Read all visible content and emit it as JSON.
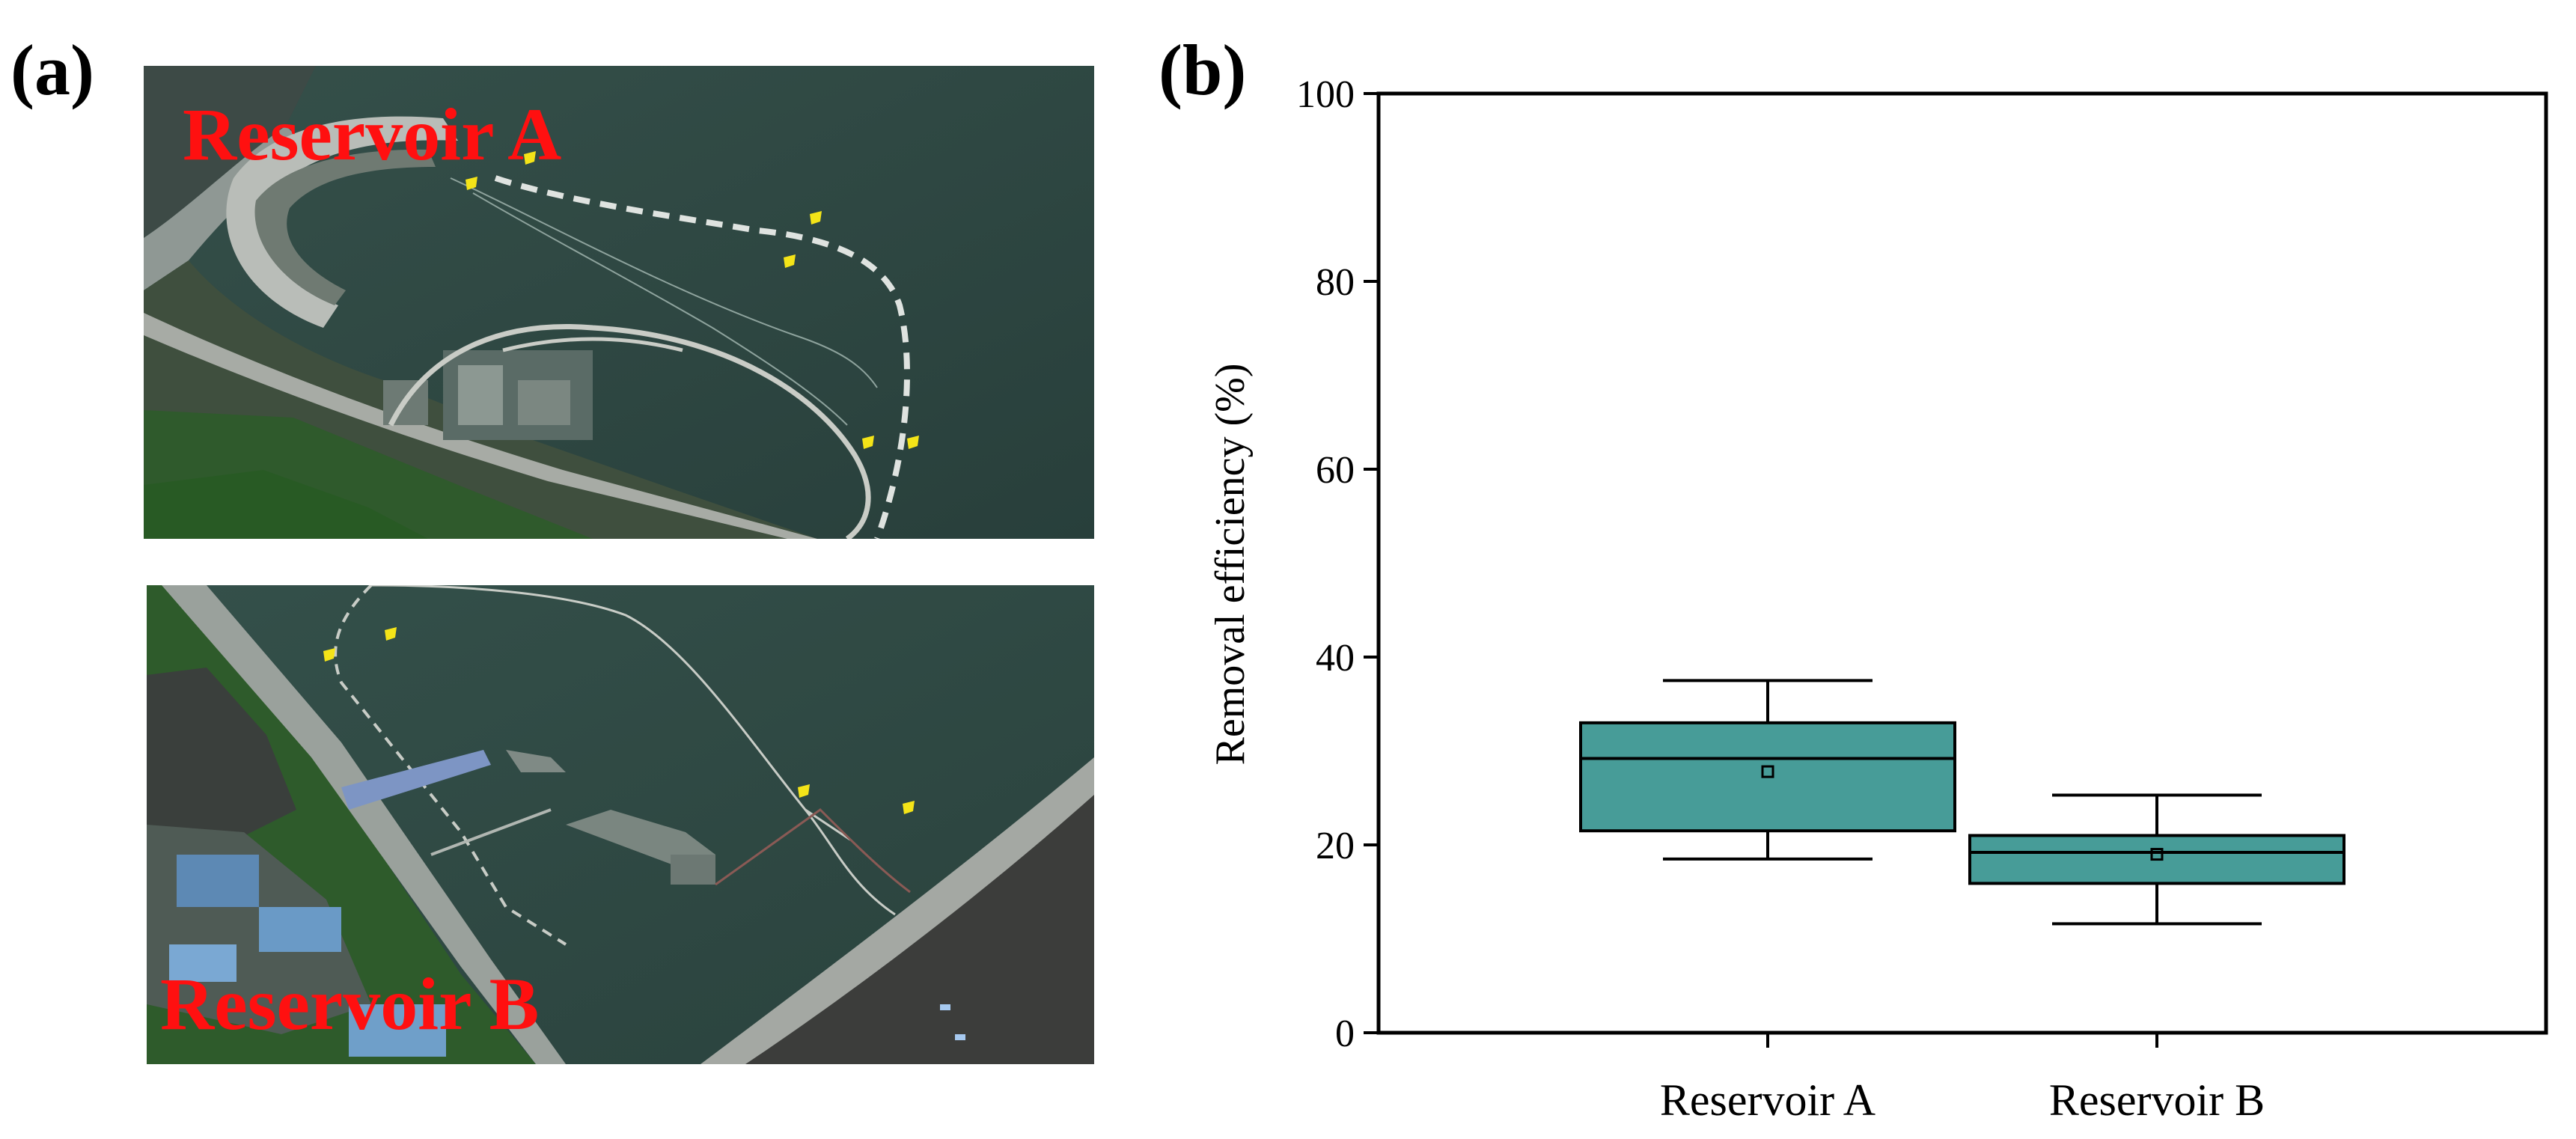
{
  "panels": {
    "a": {
      "letter": "(a)",
      "images": [
        {
          "label": "Reservoir A"
        },
        {
          "label": "Reservoir B"
        }
      ]
    },
    "b": {
      "letter": "(b)"
    }
  },
  "colors": {
    "box_fill": "#479c98",
    "box_stroke": "#000000",
    "label_red": "#ff1010",
    "water": "#2c4641",
    "marker_yellow": "#f4e418"
  },
  "chart_data": {
    "type": "box",
    "title": "",
    "xlabel": "",
    "ylabel": "Removal efficiency (%)",
    "ylim": [
      0,
      100
    ],
    "yticks": [
      0,
      20,
      40,
      60,
      80,
      100
    ],
    "grid": false,
    "categories": [
      "Reservoir A",
      "Reservoir B"
    ],
    "series": [
      {
        "category": "Reservoir A",
        "whisker_low": 18.5,
        "q1": 21.5,
        "median": 29.2,
        "q3": 33.0,
        "whisker_high": 37.5,
        "mean": 27.8
      },
      {
        "category": "Reservoir B",
        "whisker_low": 11.6,
        "q1": 15.9,
        "median": 19.2,
        "q3": 21.0,
        "whisker_high": 25.3,
        "mean": 19.0
      }
    ]
  }
}
